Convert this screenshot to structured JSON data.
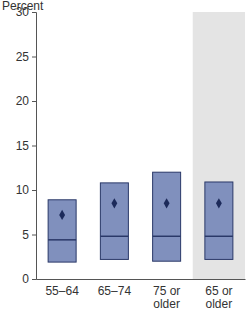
{
  "chart_data": {
    "type": "range",
    "y_label": "Percent",
    "categories": [
      "55–64",
      "65–74",
      "75 or older",
      "65 or older"
    ],
    "low": [
      1.9,
      2.2,
      2.0,
      2.2
    ],
    "high": [
      8.9,
      10.8,
      12.0,
      10.9
    ],
    "median": [
      4.4,
      4.8,
      4.8,
      4.8
    ],
    "mean": [
      7.2,
      8.5,
      8.5,
      8.5
    ],
    "color": "#8090bd",
    "ylim": [
      0,
      30
    ],
    "yticks": [
      0,
      5,
      10,
      15,
      20,
      25,
      30
    ],
    "grid": false
  }
}
